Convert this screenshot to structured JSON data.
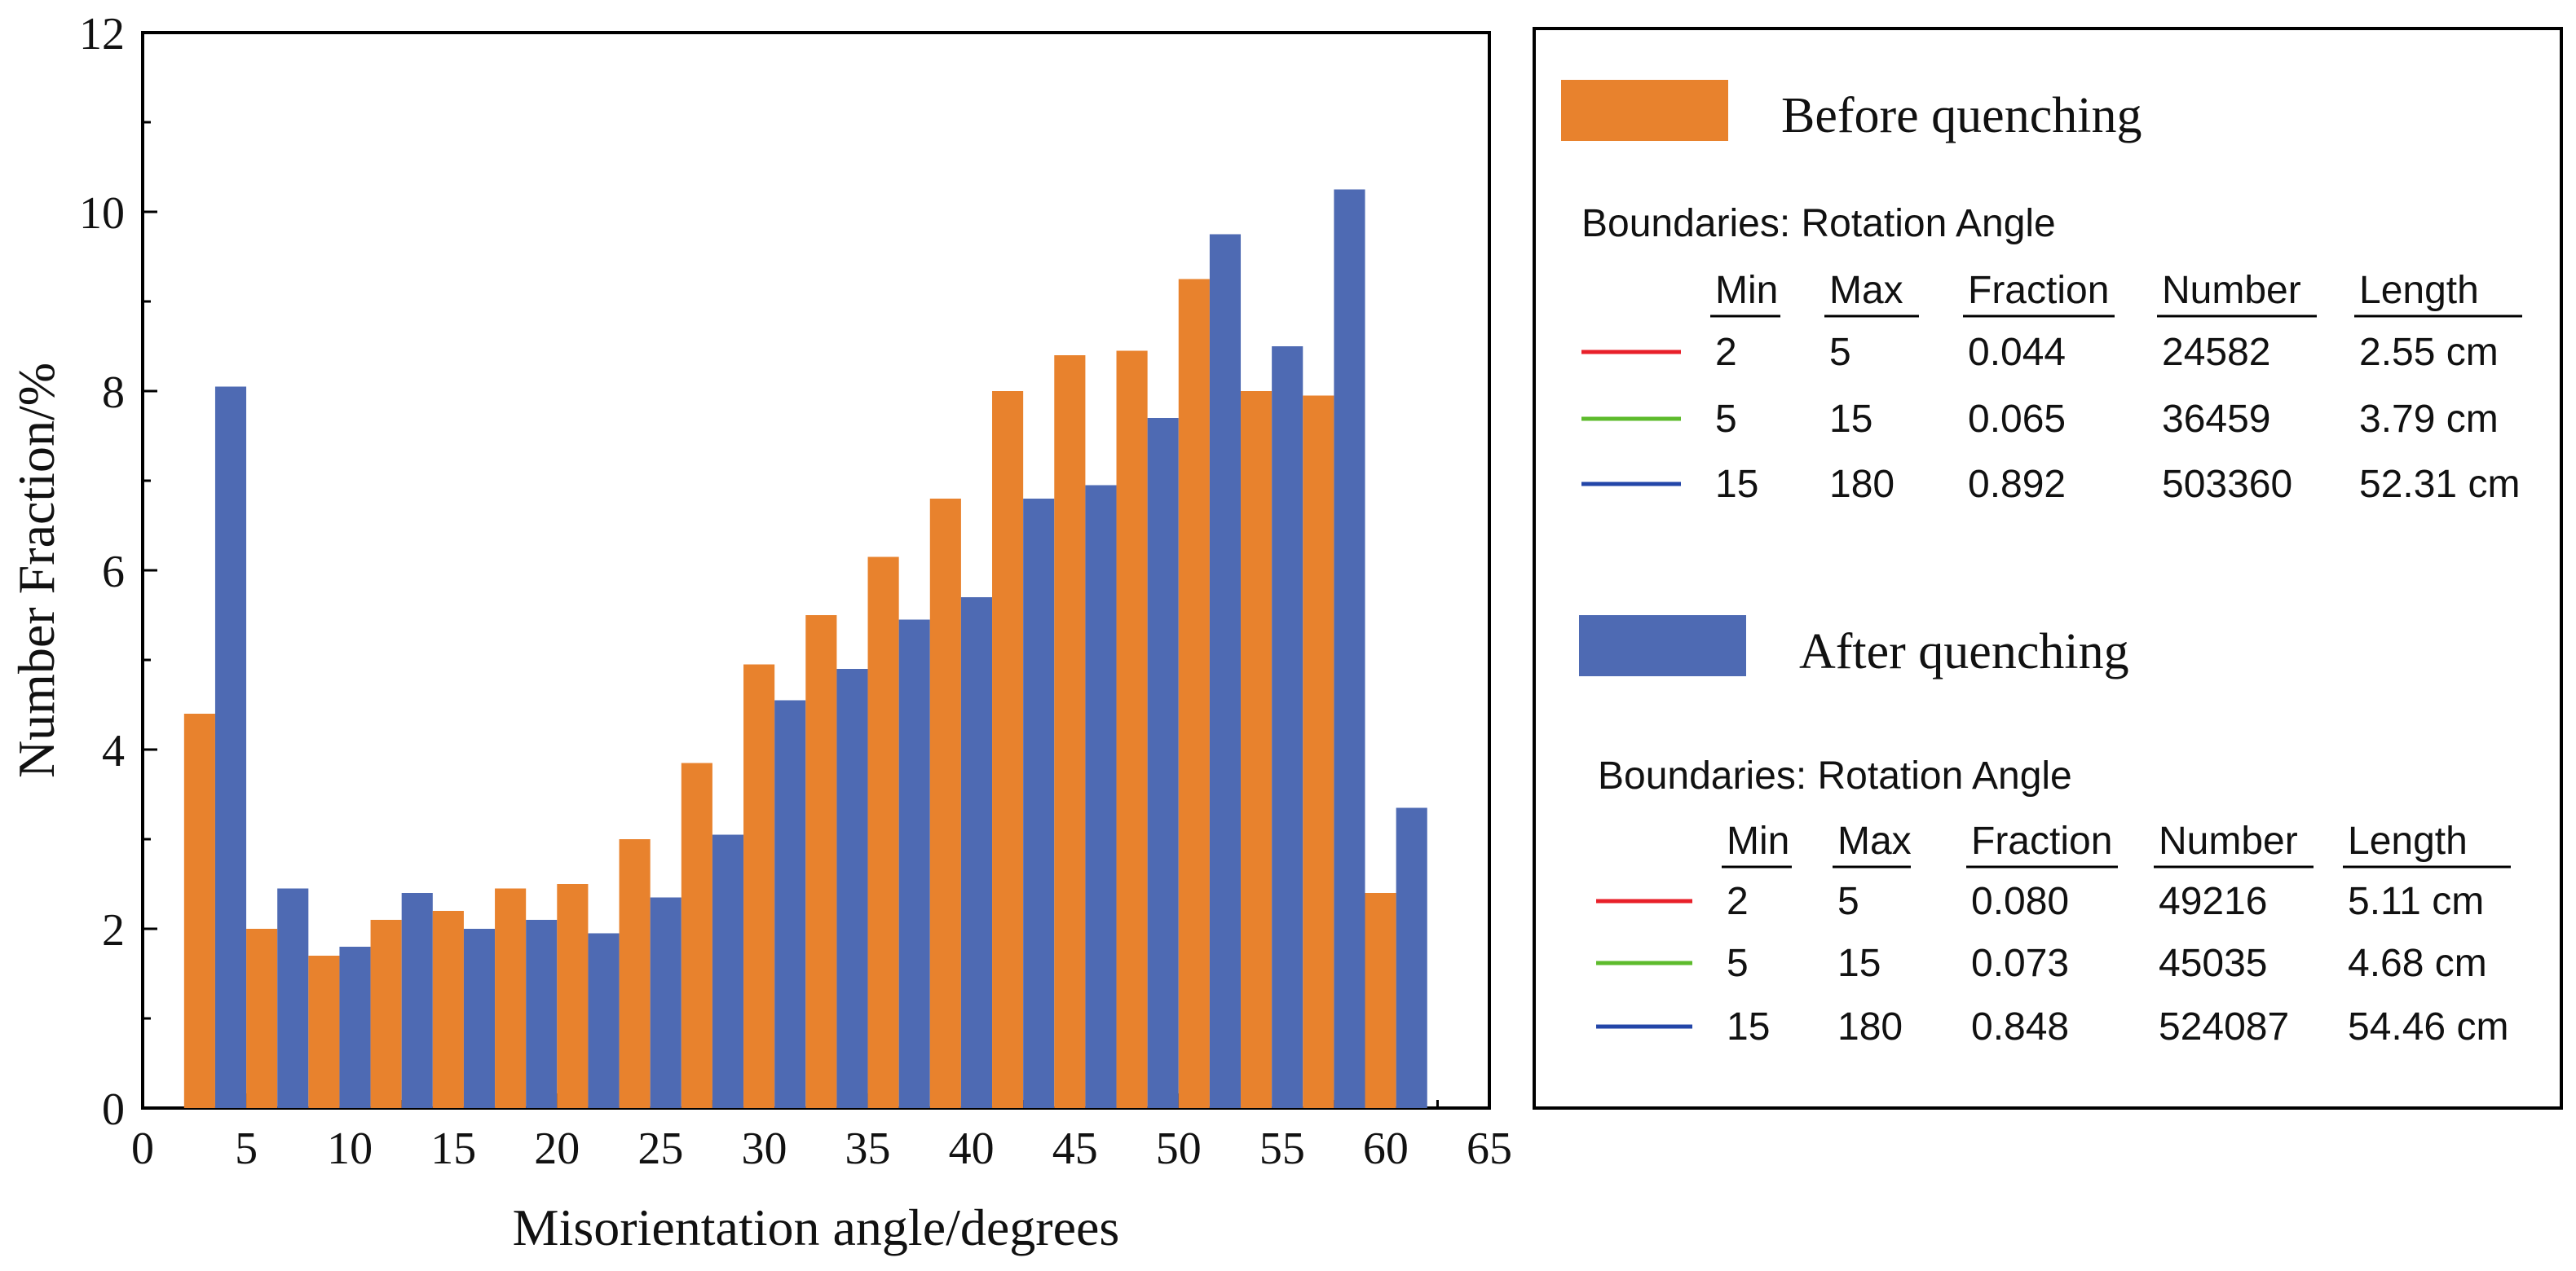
{
  "chart_data": {
    "type": "bar",
    "xlabel": "Misorientation angle/degrees",
    "ylabel": "Number Fraction/%",
    "xlim": [
      0,
      65
    ],
    "ylim": [
      0,
      12
    ],
    "x_ticks": [
      0,
      5,
      10,
      15,
      20,
      25,
      30,
      35,
      40,
      45,
      50,
      55,
      60,
      65
    ],
    "y_ticks": [
      0,
      2,
      4,
      6,
      8,
      10,
      12
    ],
    "categories": [
      3.5,
      6.5,
      9.5,
      12.5,
      15.5,
      18.5,
      21.5,
      24.5,
      27.5,
      30.5,
      33.5,
      36.5,
      39.5,
      42.5,
      45.5,
      48.5,
      51.5,
      54.5,
      57.5,
      60.5
    ],
    "series": [
      {
        "name": "Before quenching",
        "color": "#E8822D",
        "values": [
          4.4,
          2.0,
          1.7,
          2.1,
          2.2,
          2.45,
          2.5,
          3.0,
          3.85,
          4.95,
          5.5,
          6.15,
          6.8,
          8.0,
          8.4,
          8.45,
          9.25,
          8.0,
          7.95,
          2.4
        ]
      },
      {
        "name": "After quenching",
        "color": "#4E6AB3",
        "values": [
          8.05,
          2.45,
          1.8,
          2.4,
          2.0,
          2.1,
          1.95,
          2.35,
          3.05,
          4.55,
          4.9,
          5.45,
          5.7,
          6.8,
          6.95,
          7.7,
          9.75,
          8.5,
          10.25,
          3.35
        ]
      }
    ]
  },
  "legend": {
    "before": {
      "label": "Before quenching",
      "color": "#E8822D",
      "table_title": "Boundaries: Rotation Angle",
      "headers": [
        "Min",
        "Max",
        "Fraction",
        "Number",
        "Length"
      ],
      "rows": [
        {
          "line_color": "#E8202A",
          "cells": [
            "2",
            "5",
            "0.044",
            "24582",
            "2.55 cm"
          ]
        },
        {
          "line_color": "#5DBB2C",
          "cells": [
            "5",
            "15",
            "0.065",
            "36459",
            "3.79 cm"
          ]
        },
        {
          "line_color": "#2346A8",
          "cells": [
            "15",
            "180",
            "0.892",
            "503360",
            "52.31 cm"
          ]
        }
      ]
    },
    "after": {
      "label": "After quenching",
      "color": "#4E6AB3",
      "table_title": "Boundaries: Rotation Angle",
      "headers": [
        "Min",
        "Max",
        "Fraction",
        "Number",
        "Length"
      ],
      "rows": [
        {
          "line_color": "#E8202A",
          "cells": [
            "2",
            "5",
            "0.080",
            "49216",
            "5.11 cm"
          ]
        },
        {
          "line_color": "#5DBB2C",
          "cells": [
            "5",
            "15",
            "0.073",
            "45035",
            "4.68 cm"
          ]
        },
        {
          "line_color": "#2346A8",
          "cells": [
            "15",
            "180",
            "0.848",
            "524087",
            "54.46 cm"
          ]
        }
      ]
    }
  }
}
